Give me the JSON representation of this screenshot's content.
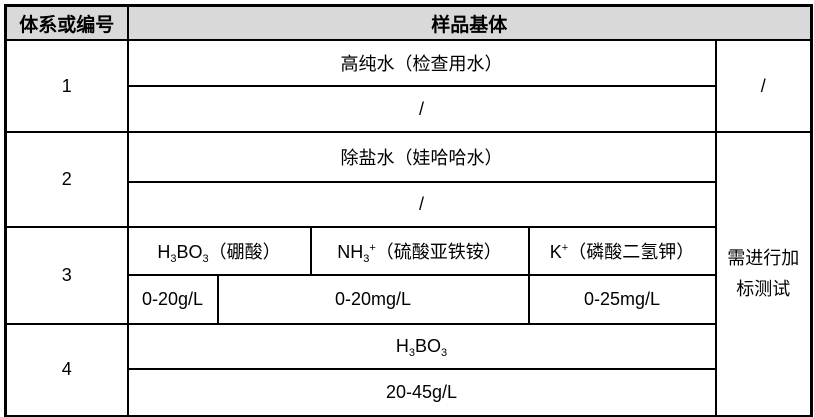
{
  "table": {
    "header": {
      "system_col": "体系或编号",
      "matrix_col": "样品基体"
    },
    "rows": {
      "r1": {
        "id": "1",
        "matrix": "高纯水（检查用水）",
        "range": "/",
        "note": "/"
      },
      "r2": {
        "id": "2",
        "matrix": "除盐水（娃哈哈水）",
        "range": "/"
      },
      "r3": {
        "id": "3",
        "analytes": {
          "boric_acid": {
            "formula": "H~3~BO~3~（硼酸）",
            "range": "0-20g/L"
          },
          "ammonium": {
            "formula": "NH~3~^+^（硫酸亚铁铵）",
            "range": "0-20mg/L"
          },
          "potassium": {
            "formula": "K^+^（磷酸二氢钾）",
            "range": "0-25mg/L"
          }
        }
      },
      "r4": {
        "id": "4",
        "matrix_formula": "H~3~BO~3~",
        "range": "20-45g/L"
      }
    },
    "merged_note": "需进行加标测试"
  },
  "colors": {
    "header_bg": "#d9d9d9",
    "border": "#000000",
    "text": "#000000"
  }
}
